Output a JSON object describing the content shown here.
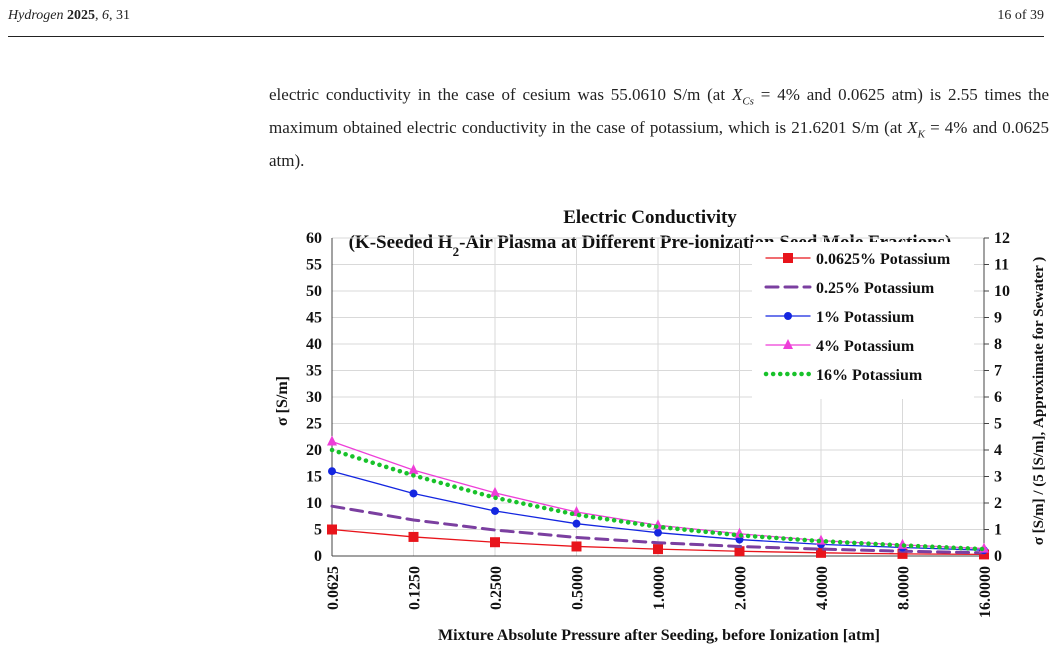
{
  "header": {
    "journal_name": "Hydrogen",
    "year": "2025",
    "volume": "6",
    "article": "31",
    "page_label": "16 of 39"
  },
  "paragraph": {
    "p1": "electric conductivity in the case of cesium was 55.0610 S/m (at ",
    "var1": "X",
    "sub1": "Cs",
    "p2": " = 4% and 0.0625 atm) is 2.55 times the maximum obtained electric conductivity in the case of potassium, which is 21.6201 S/m (at ",
    "var2": "X",
    "sub2": "K",
    "p3": " = 4% and 0.0625 atm)."
  },
  "chart_data": {
    "type": "line",
    "title_line1": "Electric Conductivity",
    "title_line2_pre": "(K-Seeded H",
    "title_line2_sub": "2",
    "title_line2_post": "-Air Plasma at Different Pre-ionization Seed Mole Fractions)",
    "xlabel": "Mixture Absolute Pressure after Seeding, before Ionization [atm]",
    "ylabel": "σ [S/m]",
    "y2label": "σ [S/m] / (5 [S/m], Approximate for Sewater )",
    "categories": [
      "0.0625",
      "0.1250",
      "0.2500",
      "0.5000",
      "1.0000",
      "2.0000",
      "4.0000",
      "8.0000",
      "16.0000"
    ],
    "ylim": [
      0,
      60
    ],
    "y_ticks": [
      "0",
      "5",
      "10",
      "15",
      "20",
      "25",
      "30",
      "35",
      "40",
      "45",
      "50",
      "55",
      "60"
    ],
    "y2lim": [
      0,
      12
    ],
    "y2_ticks": [
      "0",
      "1",
      "2",
      "3",
      "4",
      "5",
      "6",
      "7",
      "8",
      "9",
      "10",
      "11",
      "12"
    ],
    "grid": true,
    "legend_position": "top-right",
    "series": [
      {
        "name": "0.0625% Potassium",
        "color": "#e8141b",
        "style": "solid",
        "marker": "square",
        "values": [
          5.0,
          3.6,
          2.6,
          1.8,
          1.3,
          0.9,
          0.6,
          0.4,
          0.3
        ]
      },
      {
        "name": "0.25% Potassium",
        "color": "#7b3fa0",
        "style": "dashed",
        "marker": "none",
        "values": [
          9.4,
          6.8,
          4.9,
          3.5,
          2.5,
          1.8,
          1.3,
          0.9,
          0.6
        ]
      },
      {
        "name": "1% Potassium",
        "color": "#1426e0",
        "style": "solid",
        "marker": "circle",
        "values": [
          16.0,
          11.8,
          8.5,
          6.1,
          4.4,
          3.1,
          2.2,
          1.6,
          1.1
        ]
      },
      {
        "name": "4% Potassium",
        "color": "#ee3ed8",
        "style": "solid",
        "marker": "triangle",
        "values": [
          21.6,
          16.2,
          11.9,
          8.3,
          5.8,
          4.2,
          2.9,
          2.1,
          1.4
        ]
      },
      {
        "name": "16% Potassium",
        "color": "#18c22a",
        "style": "dotted",
        "marker": "none",
        "values": [
          20.0,
          15.2,
          11.0,
          7.8,
          5.5,
          3.9,
          2.8,
          2.0,
          1.3
        ]
      }
    ]
  }
}
